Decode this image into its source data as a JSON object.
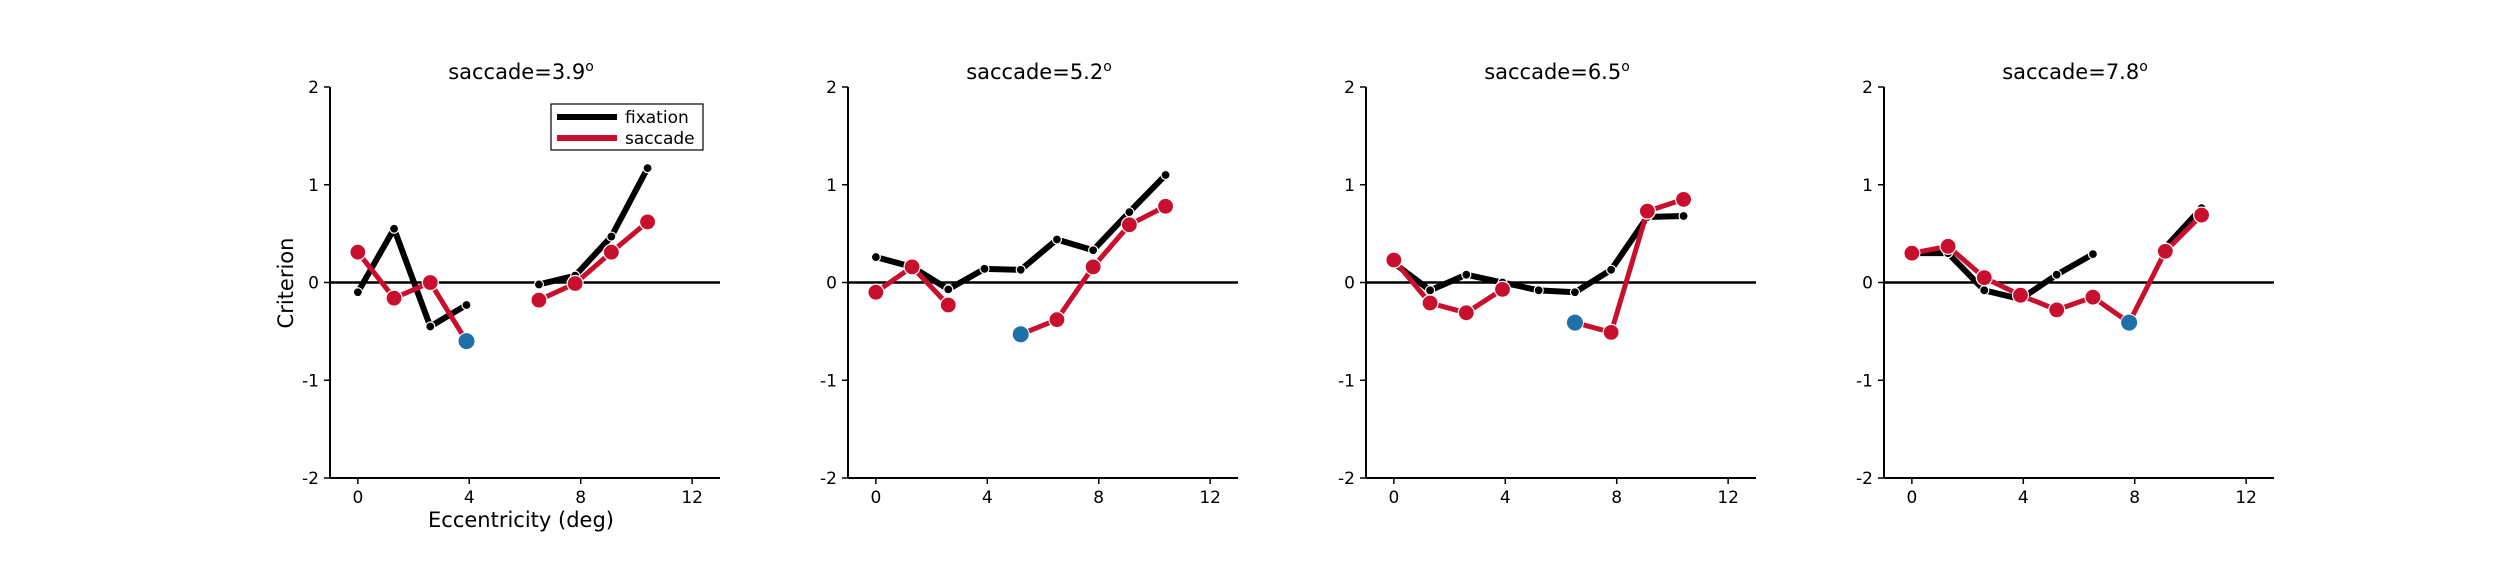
{
  "chart_data": [
    {
      "type": "line",
      "title": "saccade=3.9",
      "title_superscript": "o",
      "xlabel": "Eccentricity (deg)",
      "ylabel": "Criterion",
      "xlim": [
        -1,
        13
      ],
      "ylim": [
        -2,
        2
      ],
      "xticks": [
        "0",
        "4",
        "8",
        "12"
      ],
      "yticks": [
        "-2",
        "-1",
        "0",
        "1",
        "2"
      ],
      "grid": false,
      "legend": {
        "placement": "top-right",
        "entries": [
          "fixation",
          "saccade"
        ]
      },
      "series": [
        {
          "name": "fixation",
          "color": "#000000",
          "segments": [
            {
              "x": [
                0.0,
                1.3,
                2.6,
                3.9
              ],
              "y": [
                -0.1,
                0.55,
                -0.45,
                -0.23
              ]
            },
            {
              "x": [
                6.5,
                7.8,
                9.1,
                10.4
              ],
              "y": [
                -0.02,
                0.07,
                0.47,
                1.17
              ]
            }
          ]
        },
        {
          "name": "saccade",
          "color": "#c8102e",
          "segments": [
            {
              "x": [
                0.0,
                1.3,
                2.6,
                3.9
              ],
              "y": [
                0.31,
                -0.16,
                0.0,
                -0.6
              ]
            },
            {
              "x": [
                6.5,
                7.8,
                9.1,
                10.4
              ],
              "y": [
                -0.18,
                -0.01,
                0.31,
                0.62
              ]
            }
          ]
        }
      ],
      "highlight": {
        "x": 3.9,
        "y": -0.6,
        "color": "#1f6fa8"
      }
    },
    {
      "type": "line",
      "title": "saccade=5.2",
      "title_superscript": "o",
      "xlim": [
        -1,
        13
      ],
      "ylim": [
        -2,
        2
      ],
      "xticks": [
        "0",
        "4",
        "8",
        "12"
      ],
      "yticks": [
        "-2",
        "-1",
        "0",
        "1",
        "2"
      ],
      "grid": false,
      "series": [
        {
          "name": "fixation",
          "color": "#000000",
          "segments": [
            {
              "x": [
                0.0,
                1.3,
                2.6,
                3.9,
                5.2,
                6.5,
                7.8,
                9.1,
                10.4
              ],
              "y": [
                0.26,
                0.16,
                -0.07,
                0.14,
                0.13,
                0.44,
                0.33,
                0.72,
                1.1
              ]
            }
          ]
        },
        {
          "name": "saccade",
          "color": "#c8102e",
          "segments": [
            {
              "x": [
                0.0,
                1.3,
                2.6
              ],
              "y": [
                -0.1,
                0.16,
                -0.23
              ]
            },
            {
              "x": [
                5.2,
                6.5,
                7.8,
                9.1,
                10.4
              ],
              "y": [
                -0.53,
                -0.38,
                0.16,
                0.59,
                0.78
              ]
            }
          ]
        }
      ],
      "highlight": {
        "x": 5.2,
        "y": -0.53,
        "color": "#1f6fa8"
      }
    },
    {
      "type": "line",
      "title": "saccade=6.5",
      "title_superscript": "o",
      "xlim": [
        -1,
        13
      ],
      "ylim": [
        -2,
        2
      ],
      "xticks": [
        "0",
        "4",
        "8",
        "12"
      ],
      "yticks": [
        "-2",
        "-1",
        "0",
        "1",
        "2"
      ],
      "grid": false,
      "series": [
        {
          "name": "fixation",
          "color": "#000000",
          "segments": [
            {
              "x": [
                0.0,
                1.3,
                2.6,
                3.9,
                5.2,
                6.5,
                7.8,
                9.1,
                10.4
              ],
              "y": [
                0.2,
                -0.08,
                0.08,
                0.0,
                -0.08,
                -0.1,
                0.13,
                0.67,
                0.68
              ]
            }
          ]
        },
        {
          "name": "saccade",
          "color": "#c8102e",
          "segments": [
            {
              "x": [
                0.0,
                1.3,
                2.6,
                3.9
              ],
              "y": [
                0.23,
                -0.21,
                -0.31,
                -0.07
              ]
            },
            {
              "x": [
                6.5,
                7.8,
                9.1,
                10.4
              ],
              "y": [
                -0.41,
                -0.51,
                0.73,
                0.85
              ]
            }
          ]
        }
      ],
      "highlight": {
        "x": 6.5,
        "y": -0.41,
        "color": "#1f6fa8"
      }
    },
    {
      "type": "line",
      "title": "saccade=7.8",
      "title_superscript": "o",
      "xlim": [
        -1,
        13
      ],
      "ylim": [
        -2,
        2
      ],
      "xticks": [
        "0",
        "4",
        "8",
        "12"
      ],
      "yticks": [
        "-2",
        "-1",
        "0",
        "1",
        "2"
      ],
      "grid": false,
      "series": [
        {
          "name": "fixation",
          "color": "#000000",
          "segments": [
            {
              "x": [
                0.0,
                1.3,
                2.6,
                3.9,
                5.2,
                6.5
              ],
              "y": [
                0.3,
                0.3,
                -0.08,
                -0.17,
                0.08,
                0.29
              ]
            },
            {
              "x": [
                9.1,
                10.4
              ],
              "y": [
                0.36,
                0.76
              ]
            }
          ]
        },
        {
          "name": "saccade",
          "color": "#c8102e",
          "segments": [
            {
              "x": [
                0.0,
                1.3,
                2.6,
                3.9,
                5.2,
                6.5,
                7.8,
                9.1,
                10.4
              ],
              "y": [
                0.3,
                0.37,
                0.05,
                -0.13,
                -0.28,
                -0.15,
                -0.41,
                0.32,
                0.69
              ]
            }
          ]
        }
      ],
      "highlight": {
        "x": 7.8,
        "y": -0.41,
        "color": "#1f6fa8"
      }
    }
  ]
}
